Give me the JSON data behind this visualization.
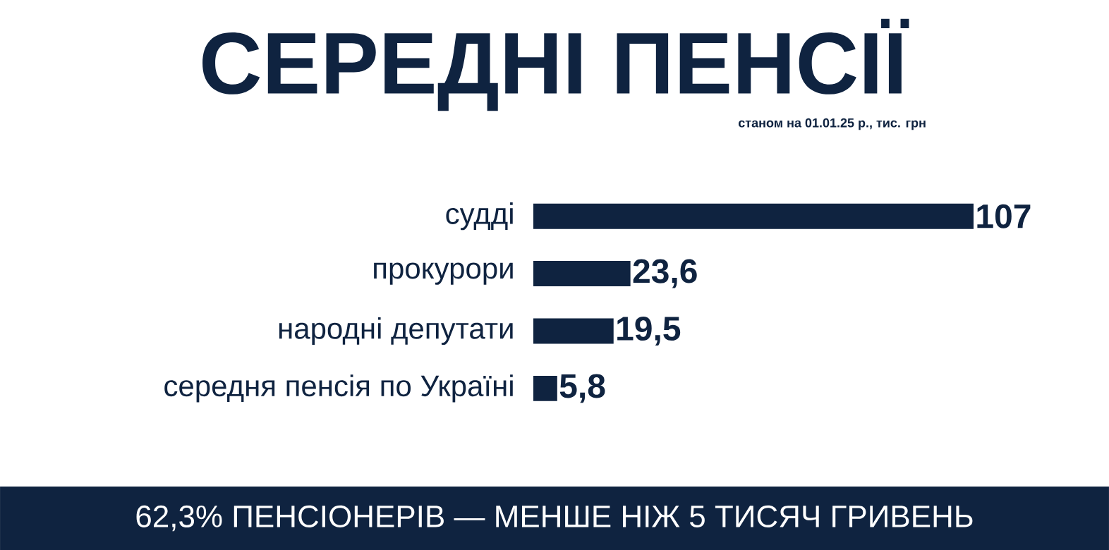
{
  "chart_data": {
    "type": "bar",
    "orientation": "horizontal",
    "title": "СЕРЕДНІ ПЕНСІЇ",
    "subtitle": "станом на 01.01.25 р., тис. грн",
    "categories": [
      "судді",
      "прокурори",
      "народні депутати",
      "середня пенсія по Україні"
    ],
    "values": [
      107,
      23.6,
      19.5,
      5.8
    ],
    "value_labels": [
      "107",
      "23,6",
      "19,5",
      "5,8"
    ],
    "color": "#0f2340",
    "annotations": [
      "62,3% ПЕНСІОНЕРІВ — МЕНШЕ НІЖ 5 ТИСЯЧ ГРИВЕНЬ"
    ]
  }
}
